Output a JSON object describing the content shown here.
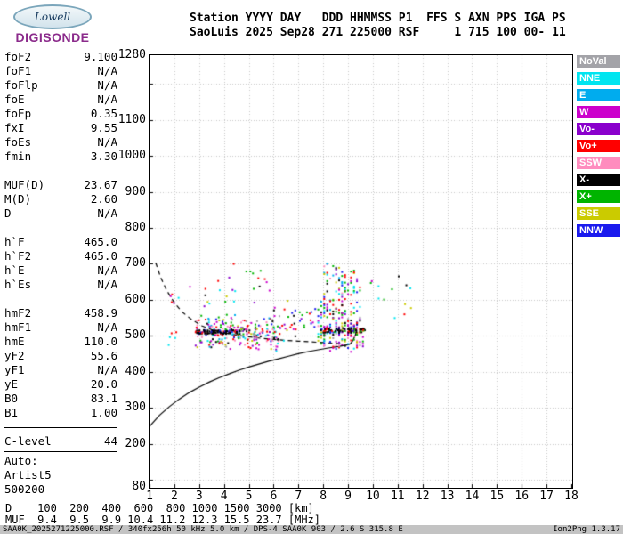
{
  "logo": {
    "oval_text": "Lowell",
    "brand": "DIGISONDE"
  },
  "header": {
    "line1": "Station YYYY DAY   DDD HHMMSS P1  FFS S AXN PPS IGA PS",
    "line2": "SaoLuis 2025 Sep28 271 225000 RSF     1 715 100 00- 11"
  },
  "panel": {
    "rows": [
      {
        "type": "param",
        "label": "foF2",
        "value": "9.100"
      },
      {
        "type": "param",
        "label": "foF1",
        "value": "N/A"
      },
      {
        "type": "param",
        "label": "foFlp",
        "value": "N/A"
      },
      {
        "type": "param",
        "label": "foE",
        "value": "N/A"
      },
      {
        "type": "param",
        "label": "foEp",
        "value": "0.35"
      },
      {
        "type": "param",
        "label": "fxI",
        "value": "9.55"
      },
      {
        "type": "param",
        "label": "foEs",
        "value": "N/A"
      },
      {
        "type": "param",
        "label": "fmin",
        "value": "3.30"
      },
      {
        "type": "gap"
      },
      {
        "type": "param",
        "label": "MUF(D)",
        "value": "23.67"
      },
      {
        "type": "param",
        "label": "M(D)",
        "value": "2.60"
      },
      {
        "type": "param",
        "label": "D",
        "value": "N/A"
      },
      {
        "type": "gap"
      },
      {
        "type": "param",
        "label": "h`F",
        "value": "465.0"
      },
      {
        "type": "param",
        "label": "h`F2",
        "value": "465.0"
      },
      {
        "type": "param",
        "label": "h`E",
        "value": "N/A"
      },
      {
        "type": "param",
        "label": "h`Es",
        "value": "N/A"
      },
      {
        "type": "gap"
      },
      {
        "type": "param",
        "label": "hmF2",
        "value": "458.9"
      },
      {
        "type": "param",
        "label": "hmF1",
        "value": "N/A"
      },
      {
        "type": "param",
        "label": "hmE",
        "value": "110.0"
      },
      {
        "type": "param",
        "label": "yF2",
        "value": "55.6"
      },
      {
        "type": "param",
        "label": "yF1",
        "value": "N/A"
      },
      {
        "type": "param",
        "label": "yE",
        "value": "20.0"
      },
      {
        "type": "param",
        "label": "B0",
        "value": "83.1"
      },
      {
        "type": "param",
        "label": "B1",
        "value": "1.00"
      },
      {
        "type": "rule"
      },
      {
        "type": "param",
        "label": "C-level",
        "value": "44"
      },
      {
        "type": "rule",
        "thin": true
      },
      {
        "type": "text",
        "label": "Auto:"
      },
      {
        "type": "text",
        "label": "Artist5"
      },
      {
        "type": "text",
        "label": "500200"
      }
    ]
  },
  "legend": [
    {
      "label": "NoVal",
      "color": "#A3A3A8"
    },
    {
      "label": "NNE",
      "color": "#00E5F0"
    },
    {
      "label": "E",
      "color": "#00ACEE"
    },
    {
      "label": "W",
      "color": "#CC00CC"
    },
    {
      "label": "Vo-",
      "color": "#8A00CC"
    },
    {
      "label": "Vo+",
      "color": "#FF0000"
    },
    {
      "label": "SSW",
      "color": "#FF8CBE"
    },
    {
      "label": "X-",
      "color": "#000000"
    },
    {
      "label": "X+",
      "color": "#00B400"
    },
    {
      "label": "SSE",
      "color": "#CBCB00"
    },
    {
      "label": "NNW",
      "color": "#1A1AEE"
    }
  ],
  "chart_data": {
    "type": "scatter",
    "title": "",
    "xlabel": "[MHz]",
    "ylabel": "[km]",
    "xlim": [
      1,
      18
    ],
    "ylim": [
      80,
      1280
    ],
    "x_tick_labels": [
      1,
      2,
      3,
      4,
      5,
      6,
      7,
      8,
      9,
      10,
      11,
      12,
      13,
      14,
      15,
      16,
      17,
      18
    ],
    "y_tick_labels": [
      1280,
      1100,
      1000,
      900,
      800,
      700,
      600,
      500,
      400,
      300,
      200,
      80
    ],
    "grid": "dotted",
    "seed": 1337,
    "curves": [
      {
        "name": "virtual-height-trace",
        "style": "dashed",
        "points": [
          [
            1.25,
            703
          ],
          [
            1.45,
            662
          ],
          [
            1.7,
            625
          ],
          [
            2.0,
            592
          ],
          [
            2.3,
            567
          ],
          [
            2.7,
            545
          ],
          [
            3.1,
            528
          ],
          [
            3.5,
            517
          ],
          [
            4.0,
            508
          ],
          [
            4.5,
            502
          ],
          [
            5.0,
            497
          ],
          [
            5.5,
            493
          ],
          [
            6.0,
            490
          ],
          [
            6.5,
            487
          ],
          [
            7.0,
            485
          ],
          [
            7.5,
            483
          ],
          [
            8.0,
            481
          ],
          [
            8.5,
            479
          ],
          [
            8.8,
            478
          ]
        ]
      },
      {
        "name": "electron-density-profile",
        "style": "solid",
        "points": [
          [
            1.0,
            248
          ],
          [
            1.4,
            279
          ],
          [
            1.8,
            303
          ],
          [
            2.2,
            324
          ],
          [
            2.6,
            342
          ],
          [
            3.0,
            357
          ],
          [
            3.4,
            371
          ],
          [
            3.8,
            383
          ],
          [
            4.2,
            394
          ],
          [
            4.6,
            404
          ],
          [
            5.0,
            413
          ],
          [
            5.4,
            421
          ],
          [
            5.8,
            429
          ],
          [
            6.2,
            436
          ],
          [
            6.6,
            443
          ],
          [
            7.0,
            450
          ],
          [
            7.4,
            456
          ],
          [
            7.8,
            461
          ],
          [
            8.2,
            466
          ],
          [
            8.6,
            470
          ],
          [
            9.0,
            475
          ],
          [
            9.1,
            478
          ],
          [
            9.2,
            487
          ],
          [
            9.3,
            503
          ],
          [
            9.35,
            515
          ]
        ]
      }
    ],
    "echo_clusters": [
      {
        "name": "f-region-main",
        "f_range": [
          2.85,
          6.35
        ],
        "h_range": [
          452,
          568
        ],
        "count": 240,
        "center_bias": true,
        "striated": false,
        "palette": [
          "Vo+",
          "Vo+",
          "X+",
          "X+",
          "X-",
          "W",
          "W",
          "NNE",
          "SSE",
          "Vo-",
          "NNW",
          "SSW",
          "E",
          "NoVal"
        ]
      },
      {
        "name": "trace-line-left",
        "f_range": [
          2.85,
          4.65
        ],
        "h_range": [
          505,
          516
        ],
        "count": 85,
        "center_bias": false,
        "striated": false,
        "palette": [
          "X-",
          "X-",
          "X-",
          "X-",
          "X-",
          "Vo+",
          "NNW"
        ]
      },
      {
        "name": "upper-scatter-left",
        "f_range": [
          3.0,
          6.1
        ],
        "h_range": [
          570,
          665
        ],
        "count": 20,
        "center_bias": false,
        "striated": false,
        "palette": [
          "Vo+",
          "X+",
          "W",
          "NNE",
          "SSE",
          "X-",
          "Vo-"
        ]
      },
      {
        "name": "isolated-left",
        "f_range": [
          1.85,
          2.65
        ],
        "h_range": [
          588,
          652
        ],
        "count": 6,
        "center_bias": false,
        "striated": false,
        "palette": [
          "W",
          "NNE",
          "Vo+",
          "X+"
        ]
      },
      {
        "name": "left-outliers",
        "f_range": [
          1.4,
          2.7
        ],
        "h_range": [
          455,
          530
        ],
        "count": 5,
        "center_bias": false,
        "striated": false,
        "palette": [
          "X+",
          "NNE",
          "Vo+"
        ]
      },
      {
        "name": "mid-sparse",
        "f_range": [
          6.35,
          7.78
        ],
        "h_range": [
          478,
          625
        ],
        "count": 30,
        "center_bias": true,
        "striated": false,
        "palette": [
          "Vo+",
          "X+",
          "X-",
          "W",
          "NNE",
          "SSE",
          "Vo-",
          "NNW"
        ]
      },
      {
        "name": "high-isolated",
        "f_range": [
          4.3,
          7.4
        ],
        "h_range": [
          628,
          702
        ],
        "count": 7,
        "center_bias": false,
        "striated": false,
        "palette": [
          "X+",
          "W",
          "Vo+",
          "NNE"
        ]
      },
      {
        "name": "right-dense-low",
        "f_range": [
          7.8,
          9.65
        ],
        "h_range": [
          452,
          585
        ],
        "count": 190,
        "center_bias": true,
        "striated": true,
        "palette": [
          "Vo+",
          "Vo+",
          "X+",
          "X+",
          "X-",
          "W",
          "W",
          "NNE",
          "SSE",
          "Vo-",
          "NNW",
          "SSW",
          "E",
          "NoVal"
        ]
      },
      {
        "name": "right-plume",
        "f_range": [
          7.95,
          8.8
        ],
        "h_range": [
          560,
          705
        ],
        "count": 65,
        "center_bias": false,
        "striated": true,
        "palette": [
          "Vo+",
          "X+",
          "X-",
          "W",
          "NNE",
          "SSE",
          "Vo-",
          "NNW",
          "E",
          "SSW"
        ]
      },
      {
        "name": "right-plume-2",
        "f_range": [
          8.85,
          9.55
        ],
        "h_range": [
          555,
          695
        ],
        "count": 38,
        "center_bias": false,
        "striated": true,
        "palette": [
          "Vo+",
          "X+",
          "W",
          "NNE",
          "SSE",
          "NNW",
          "Vo-"
        ]
      },
      {
        "name": "trace-line-right",
        "f_range": [
          7.9,
          9.7
        ],
        "h_range": [
          508,
          522
        ],
        "count": 70,
        "center_bias": false,
        "striated": false,
        "palette": [
          "X-",
          "X-",
          "X-",
          "X-",
          "Vo+",
          "X+",
          "NNW"
        ]
      },
      {
        "name": "right-sparse",
        "f_range": [
          9.7,
          11.9
        ],
        "h_range": [
          540,
          665
        ],
        "count": 13,
        "center_bias": false,
        "striated": false,
        "palette": [
          "Vo+",
          "X+",
          "W",
          "NNE",
          "X-",
          "SSE"
        ]
      }
    ]
  },
  "footer": {
    "d_row": "D    100  200  400  600  800 1000 1500 3000 [km]",
    "muf_row": "MUF  9.4  9.5  9.9 10.4 11.2 12.3 15.5 23.7 [MHz]",
    "status_left": "SAA0K_2025271225000.RSF / 340fx256h 50 kHz 5.0 km / DPS-4 SAA0K 903 / 2.6 S 315.8 E",
    "status_right": "Ion2Png 1.3.17"
  }
}
